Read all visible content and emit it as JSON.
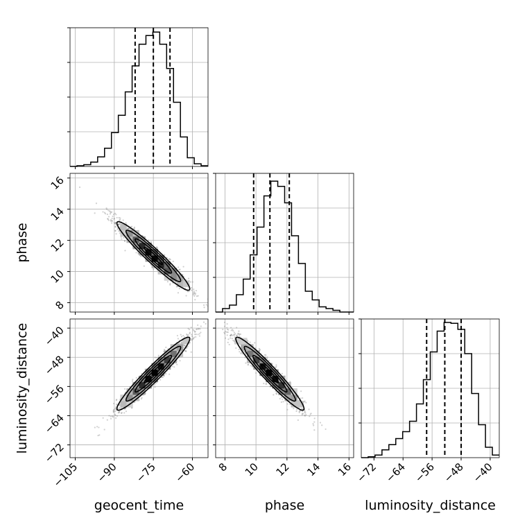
{
  "chart_data": {
    "type": "corner",
    "parameters": [
      {
        "name": "geocent_time",
        "label": "geocent_time",
        "range": [
          -107,
          -54
        ],
        "ticks": [
          -105,
          -90,
          -75,
          -60
        ],
        "tick_labels": [
          "−105",
          "−90",
          "−75",
          "−60"
        ],
        "quantiles": [
          -82,
          -75,
          -68.6
        ]
      },
      {
        "name": "phase",
        "label": "phase",
        "range": [
          7.4,
          16.3
        ],
        "ticks": [
          8,
          10,
          12,
          14,
          16
        ],
        "tick_labels": [
          "8",
          "10",
          "12",
          "14",
          "16"
        ],
        "quantiles": [
          9.85,
          10.9,
          12.15
        ]
      },
      {
        "name": "luminosity_distance",
        "label": "luminosity_distance",
        "range": [
          -75.5,
          -37.5
        ],
        "ticks": [
          -72,
          -64,
          -56,
          -48,
          -40
        ],
        "tick_labels": [
          "−72",
          "−64",
          "−56",
          "−48",
          "−40"
        ],
        "quantiles": [
          -57.5,
          -52.5,
          -48
        ]
      }
    ],
    "histograms": [
      {
        "parameter": "geocent_time",
        "bin_edges": [
          -107,
          -104.35,
          -101.7,
          -99.05,
          -96.4,
          -93.75,
          -91.1,
          -88.45,
          -85.8,
          -83.15,
          -80.5,
          -77.85,
          -75.2,
          -72.55,
          -69.9,
          -67.25,
          -64.6,
          -61.95,
          -59.3,
          -56.65,
          -54
        ],
        "counts": [
          0,
          0.4,
          1,
          2.5,
          5.5,
          10.5,
          19.5,
          29.5,
          43,
          58,
          70.5,
          75.5,
          77.5,
          70.5,
          56.5,
          37,
          17,
          5,
          1.5,
          0.4
        ]
      },
      {
        "parameter": "phase",
        "bin_edges": [
          7.4,
          7.845,
          8.29,
          8.735,
          9.18,
          9.625,
          10.07,
          10.515,
          10.96,
          11.405,
          11.85,
          12.295,
          12.74,
          13.185,
          13.63,
          14.075,
          14.52,
          14.965,
          15.41,
          15.855,
          16.3
        ],
        "counts": [
          0,
          2,
          4,
          10,
          19,
          33,
          49,
          67,
          75.5,
          72.5,
          63,
          44,
          28,
          12,
          7,
          3,
          2,
          1,
          0,
          0
        ]
      },
      {
        "parameter": "luminosity_distance",
        "bin_edges": [
          -75.5,
          -73.6,
          -71.7,
          -69.8,
          -67.9,
          -66,
          -64.1,
          -62.2,
          -60.3,
          -58.4,
          -56.5,
          -54.6,
          -52.7,
          -50.8,
          -48.9,
          -47,
          -45.1,
          -43.2,
          -41.3,
          -39.4,
          -37.5
        ],
        "counts": [
          0,
          0.5,
          1.5,
          4.5,
          7.5,
          11,
          15,
          21,
          31,
          45,
          61,
          73,
          78,
          77.5,
          74,
          60,
          37,
          19,
          6,
          1.5
        ]
      }
    ],
    "pairs": [
      {
        "x": "geocent_time",
        "y": "phase",
        "center": [
          -75,
          11
        ],
        "sd": [
          7,
          1.1
        ],
        "correlation": -0.96
      },
      {
        "x": "geocent_time",
        "y": "luminosity_distance",
        "center": [
          -75,
          -52.5
        ],
        "sd": [
          7,
          5
        ],
        "correlation": 0.96
      },
      {
        "x": "phase",
        "y": "luminosity_distance",
        "center": [
          10.9,
          -52.5
        ],
        "sd": [
          1.1,
          5
        ],
        "correlation": -0.96
      }
    ],
    "contour_levels_sigma": [
      0.5,
      1,
      1.5,
      2
    ],
    "grid": true,
    "quantile_line_style": "dashed"
  }
}
